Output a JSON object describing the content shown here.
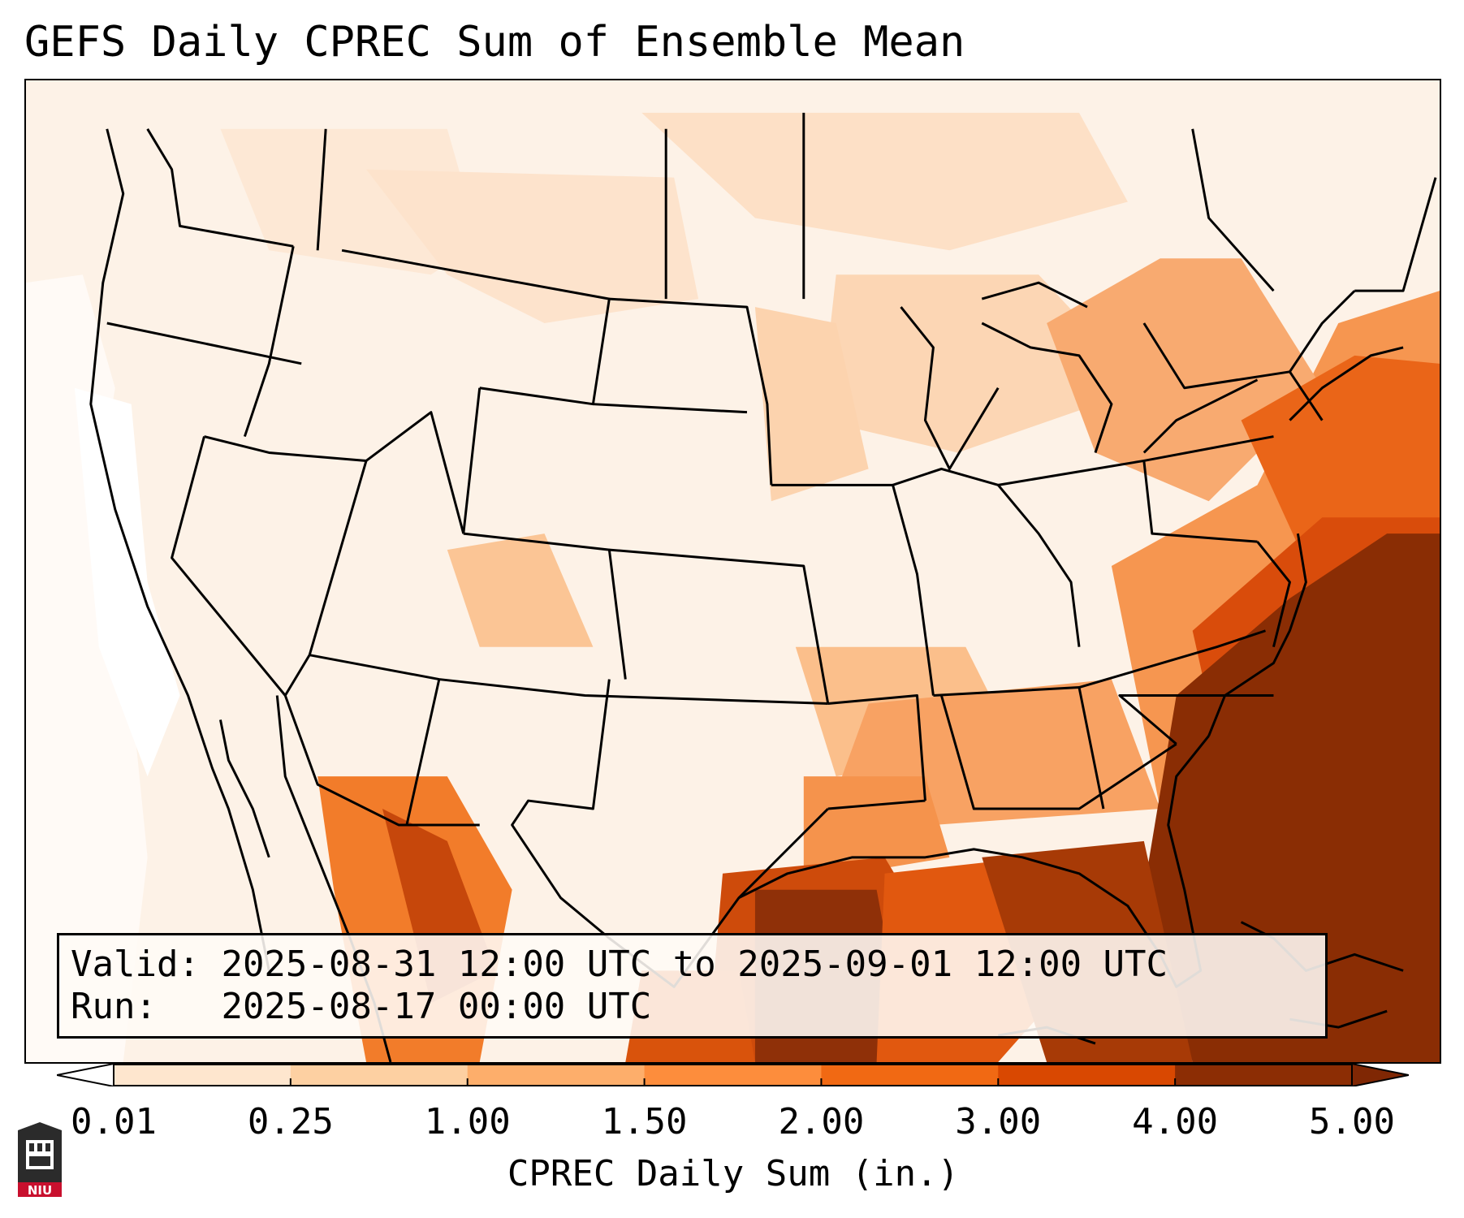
{
  "title": "GEFS Daily CPREC Sum of Ensemble Mean",
  "info": {
    "valid_label": "Valid:",
    "valid_value": "2025-08-31 12:00 UTC to 2025-09-01 12:00 UTC",
    "run_label": "Run:",
    "run_value": "2025-08-17 00:00 UTC"
  },
  "colorbar": {
    "label": "CPREC Daily Sum (in.)",
    "ticks": [
      "0.01",
      "0.25",
      "1.00",
      "1.50",
      "2.00",
      "3.00",
      "4.00",
      "5.00"
    ],
    "colors": [
      "#fff5eb",
      "#fee6ce",
      "#fdd0a2",
      "#fdae6b",
      "#fd8d3c",
      "#f16913",
      "#d94801",
      "#8c2d04"
    ],
    "under_color": "#ffffff",
    "over_color": "#7f2704"
  },
  "logo": {
    "text": "NIU",
    "colors": {
      "red": "#c8102e",
      "dark": "#2b2b2b"
    }
  },
  "map": {
    "region": "Contiguous United States",
    "layers": [
      "state-borders",
      "country-borders",
      "coastlines"
    ]
  }
}
